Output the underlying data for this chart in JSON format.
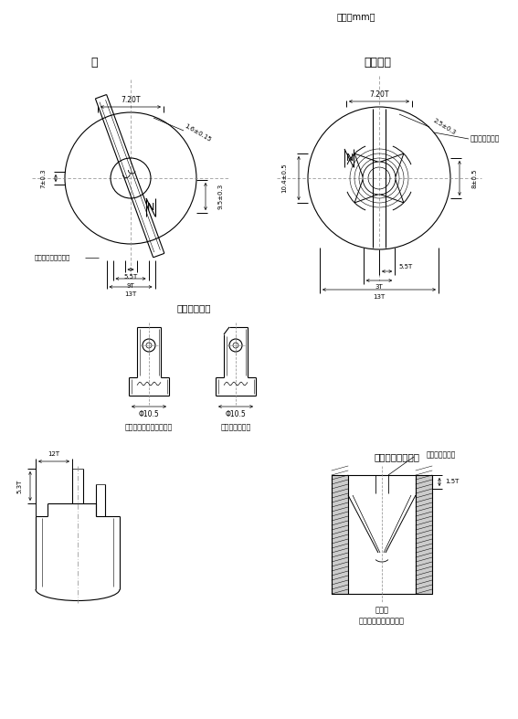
{
  "title_unit": "（単位mm）",
  "title_ha": "刃",
  "title_ukekua": "刃受け穴",
  "title_saki": "刃先の拡大図",
  "title_danmen": "刃受け穴の断面図",
  "label_notch": "刃のノッチ穴の中心",
  "label_chamfer": "面取りすること",
  "label_chamfer2": "面取りすること",
  "label_blade1": "（接地側の極以外の極）",
  "label_blade2": "（接地側の極）",
  "label_ukeru": "刃受け",
  "label_katachi": "（形状は一例を示す）",
  "dim_ha_720": "7.20T",
  "dim_ha_161": "1.6±0.15",
  "dim_ha_703": "7±0.3",
  "dim_ha_925": "9.5±0.3",
  "dim_ha_559": "5.5T",
  "dim_ha_90": "9T",
  "dim_ha_130": "13T",
  "dim_uk_720": "7.20T",
  "dim_uk_25": "2.5±0.3",
  "dim_uk_10": "10.4±0.5",
  "dim_uk_8": "8±0.5",
  "dim_uk_55": "5.5T",
  "dim_uk_30": "3T",
  "dim_uk_130": "13T",
  "dim_phi": "Φ10.5",
  "dim_15t": "1.5T",
  "dim_12t": "12T",
  "dim_53t": "5.3T",
  "lc": "#000000",
  "bg": "#ffffff",
  "dc": "#888888"
}
